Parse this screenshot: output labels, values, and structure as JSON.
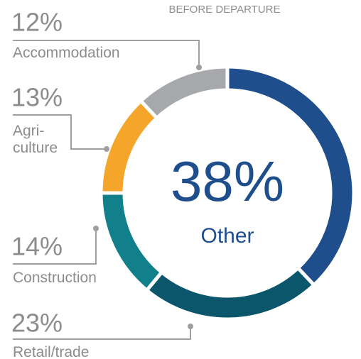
{
  "chart_data": {
    "type": "donut",
    "title": "BEFORE DEPARTURE",
    "categories": [
      "Other",
      "Retail/trade",
      "Construction",
      "Agri-\nculture",
      "Accommodation"
    ],
    "values": [
      38,
      23,
      14,
      13,
      12
    ],
    "value_labels": [
      "38%",
      "23%",
      "14%",
      "13%",
      "12%"
    ],
    "colors": [
      "#1f4e8c",
      "#0b566b",
      "#12808a",
      "#f5a52a",
      "#a7a8ab"
    ]
  }
}
